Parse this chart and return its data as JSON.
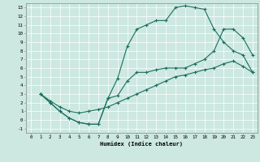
{
  "xlabel": "Humidex (Indice chaleur)",
  "xlim": [
    -0.5,
    23.5
  ],
  "ylim": [
    -1.5,
    13.5
  ],
  "xticks": [
    0,
    1,
    2,
    3,
    4,
    5,
    6,
    7,
    8,
    9,
    10,
    11,
    12,
    13,
    14,
    15,
    16,
    17,
    18,
    19,
    20,
    21,
    22,
    23
  ],
  "yticks": [
    -1,
    0,
    1,
    2,
    3,
    4,
    5,
    6,
    7,
    8,
    9,
    10,
    11,
    12,
    13
  ],
  "bg_color": "#cce8e0",
  "line_color": "#1a6e5e",
  "line1_x": [
    1,
    2,
    3,
    4,
    5,
    6,
    7,
    8,
    9,
    10,
    11,
    12,
    13,
    14,
    15,
    16,
    17,
    18,
    19,
    20,
    21,
    22,
    23
  ],
  "line1_y": [
    3,
    2,
    1,
    0.2,
    -0.3,
    -0.5,
    -0.5,
    2.5,
    4.8,
    8.5,
    10.5,
    11.0,
    11.5,
    11.5,
    13.0,
    13.2,
    13.0,
    12.8,
    10.5,
    9.0,
    8.0,
    7.5,
    5.5
  ],
  "line2_x": [
    1,
    2,
    3,
    4,
    5,
    6,
    7,
    8,
    9,
    10,
    11,
    12,
    13,
    14,
    15,
    16,
    17,
    18,
    19,
    20,
    21,
    22,
    23
  ],
  "line2_y": [
    3,
    2,
    1,
    0.2,
    -0.3,
    -0.5,
    -0.5,
    2.5,
    2.8,
    4.5,
    5.5,
    5.5,
    5.8,
    6.0,
    6.0,
    6.0,
    6.5,
    7.0,
    8.0,
    10.5,
    10.5,
    9.5,
    7.5
  ],
  "line3_x": [
    1,
    2,
    3,
    4,
    5,
    6,
    7,
    8,
    9,
    10,
    11,
    12,
    13,
    14,
    15,
    16,
    17,
    18,
    19,
    20,
    21,
    22,
    23
  ],
  "line3_y": [
    3,
    2.2,
    1.5,
    1.0,
    0.8,
    1.0,
    1.2,
    1.5,
    2.0,
    2.5,
    3.0,
    3.5,
    4.0,
    4.5,
    5.0,
    5.2,
    5.5,
    5.8,
    6.0,
    6.5,
    6.8,
    6.2,
    5.5
  ]
}
